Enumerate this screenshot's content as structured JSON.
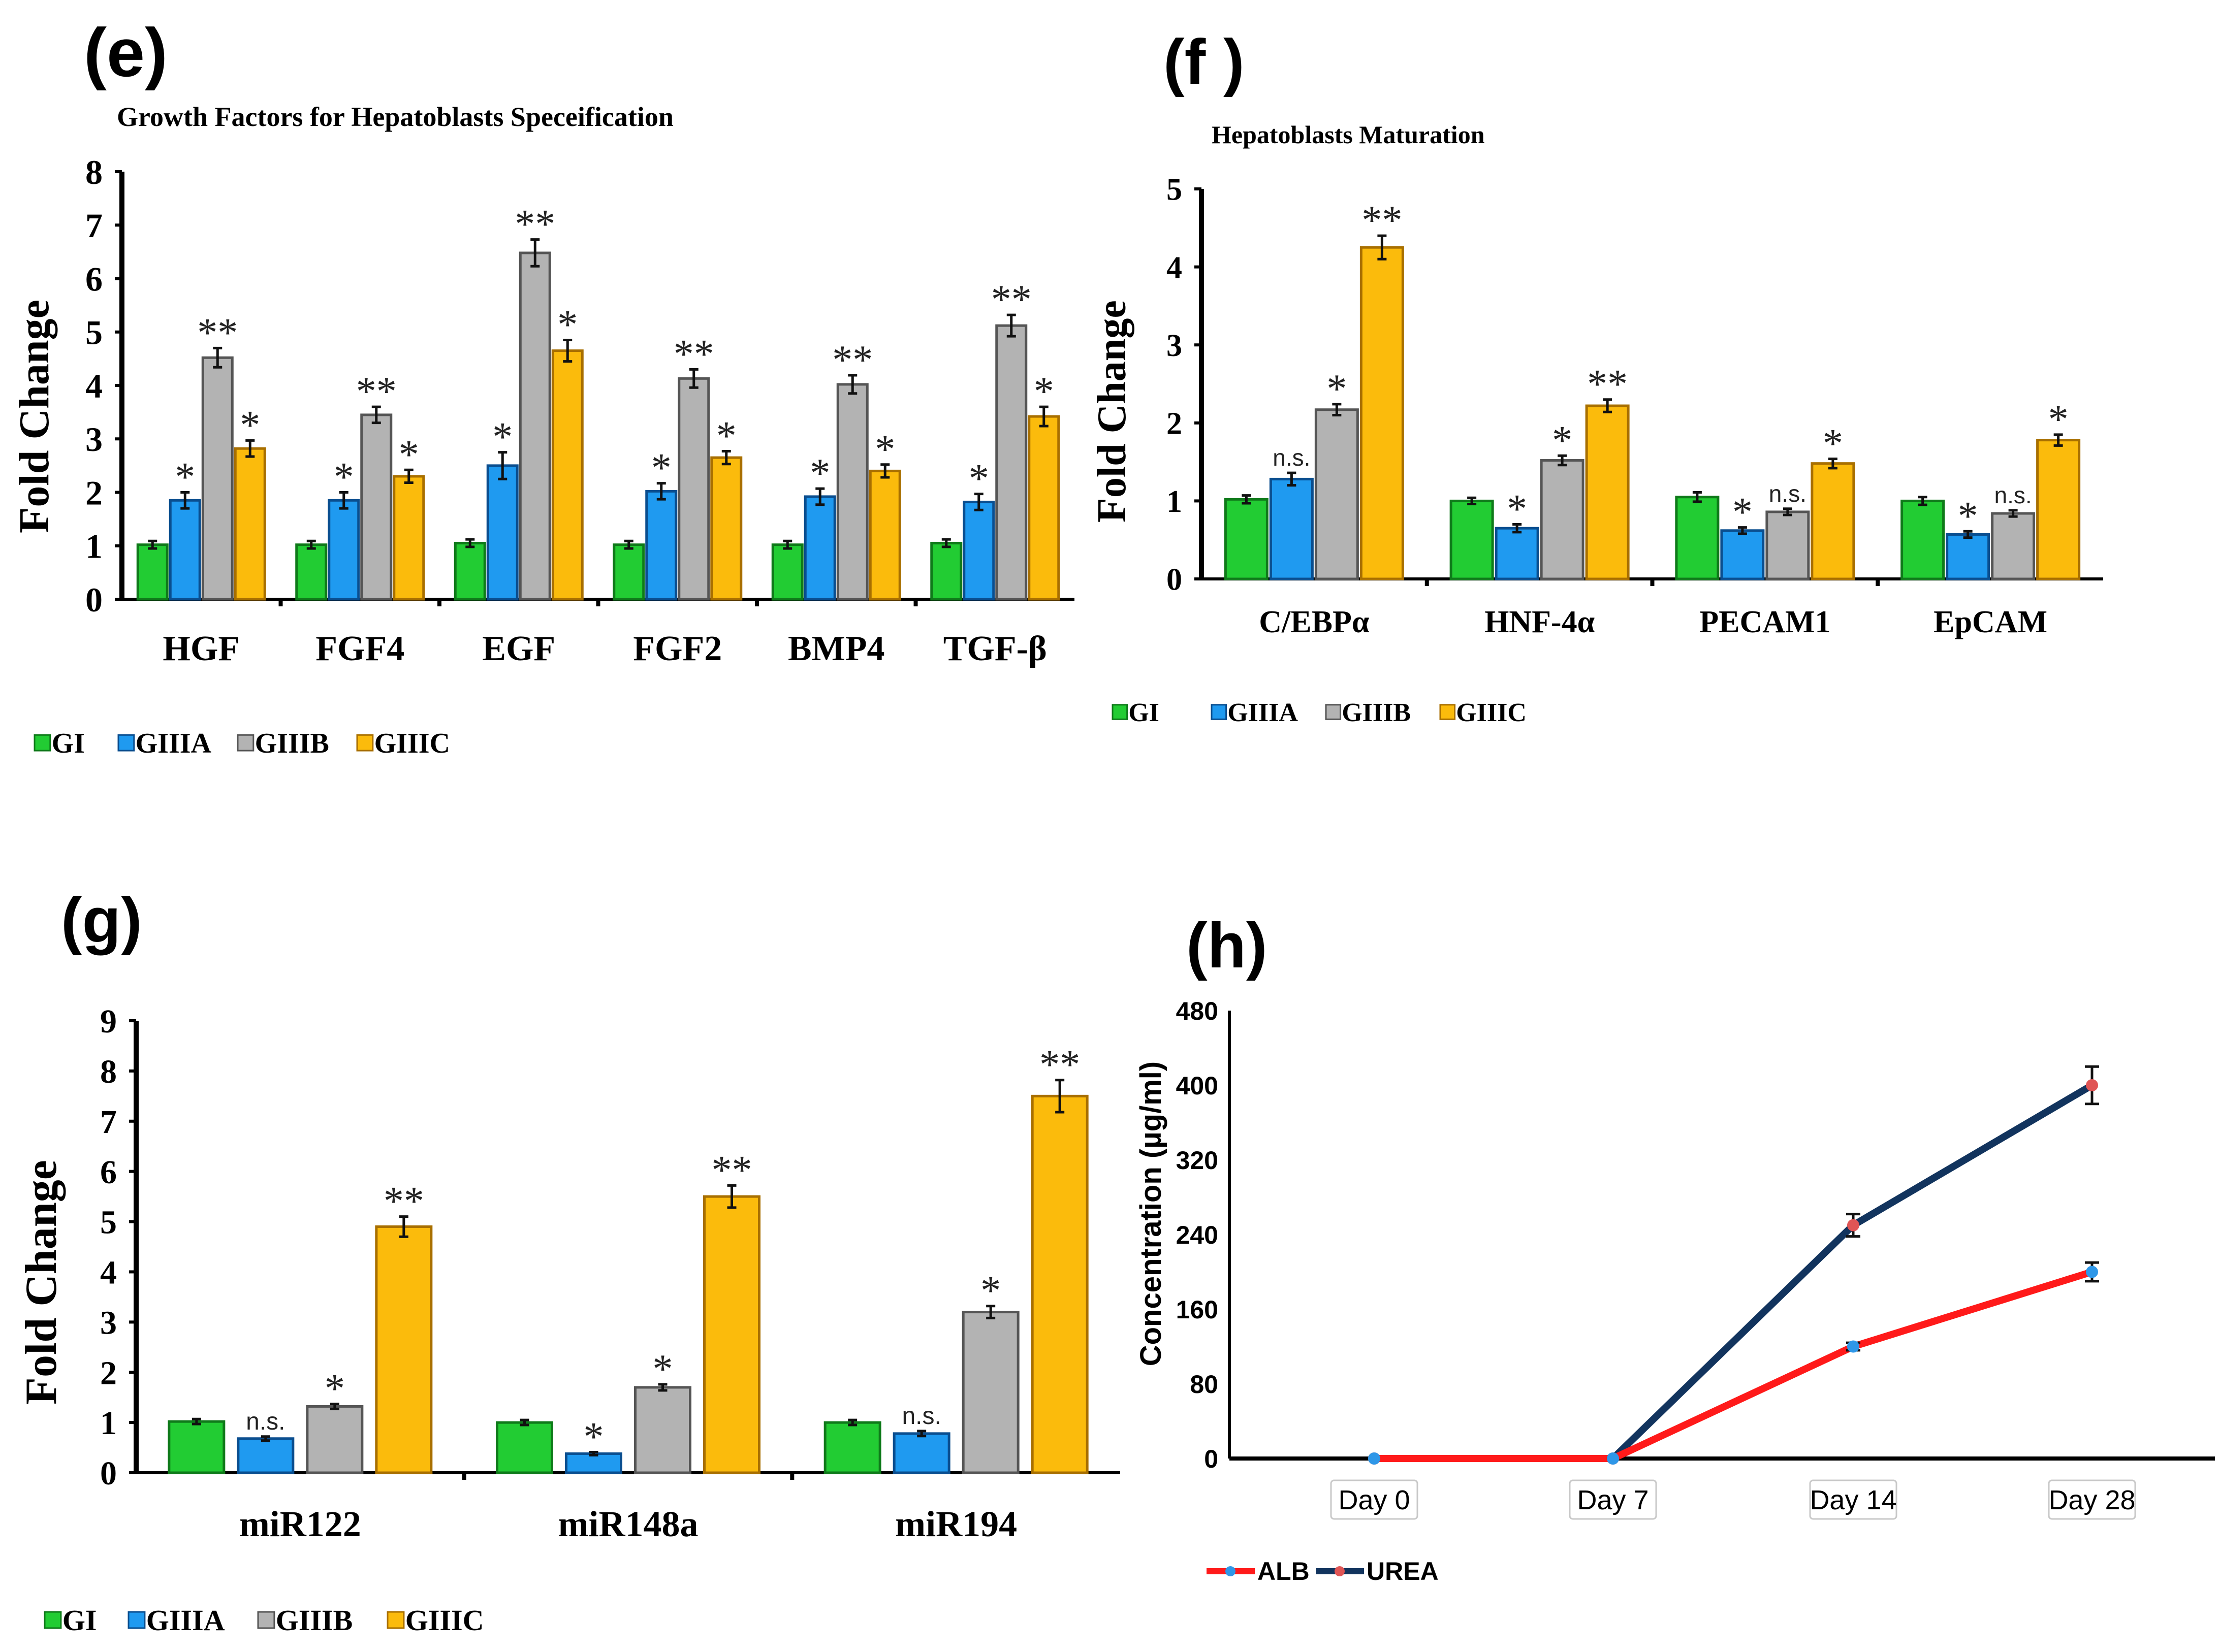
{
  "colors": {
    "GI": "#22cc33",
    "GI_edge": "#0f7a1a",
    "GIIIA": "#1f9af0",
    "GIIIA_edge": "#0a4e8f",
    "GIIIB": "#b3b3b3",
    "GIIIB_edge": "#555555",
    "GIIIC": "#fbbb0c",
    "GIIIC_edge": "#a86f00",
    "ALB": "#ff1a1a",
    "UREA": "#12345e",
    "ALB_marker": "#2e97e8",
    "UREA_marker": "#e05555"
  },
  "chart_data": [
    {
      "panel": "(e)",
      "type": "bar",
      "title": "Growth Factors for Hepatoblasts Speceification",
      "ylabel": "Fold Change",
      "xlabel": "",
      "ylim": [
        0,
        8
      ],
      "yticks": [
        "0",
        "1",
        "2",
        "3",
        "4",
        "5",
        "6",
        "7",
        "8"
      ],
      "categories": [
        "HGF",
        "FGF4",
        "EGF",
        "FGF2",
        "BMP4",
        "TGF-β"
      ],
      "series": [
        {
          "name": "GI",
          "values": [
            1.02,
            1.02,
            1.05,
            1.02,
            1.02,
            1.05
          ],
          "errors": [
            0.07,
            0.07,
            0.07,
            0.07,
            0.07,
            0.07
          ],
          "marks": [
            "",
            "",
            "",
            "",
            "",
            ""
          ]
        },
        {
          "name": "GIIIA",
          "values": [
            1.85,
            1.85,
            2.5,
            2.02,
            1.92,
            1.82
          ],
          "errors": [
            0.15,
            0.15,
            0.25,
            0.15,
            0.15,
            0.15
          ],
          "marks": [
            "*",
            "*",
            "*",
            "*",
            "*",
            "*"
          ]
        },
        {
          "name": "GIIIB",
          "values": [
            4.52,
            3.45,
            6.48,
            4.13,
            4.02,
            5.12
          ],
          "errors": [
            0.18,
            0.15,
            0.25,
            0.17,
            0.17,
            0.2
          ],
          "marks": [
            "**",
            "**",
            "**",
            "**",
            "**",
            "**"
          ]
        },
        {
          "name": "GIIIC",
          "values": [
            2.82,
            2.3,
            4.65,
            2.65,
            2.4,
            3.42
          ],
          "errors": [
            0.15,
            0.12,
            0.2,
            0.12,
            0.12,
            0.18
          ],
          "marks": [
            "*",
            "*",
            "*",
            "*",
            "*",
            "*"
          ]
        }
      ],
      "legend": [
        "GI",
        "GIIIA",
        "GIIIB",
        "GIIIC"
      ],
      "legend_position": "bottom-left"
    },
    {
      "panel": "(f )",
      "type": "bar",
      "title": "Hepatoblasts Maturation",
      "ylabel": "Fold Change",
      "xlabel": "",
      "ylim": [
        0,
        5
      ],
      "yticks": [
        "0",
        "1",
        "2",
        "3",
        "4",
        "5"
      ],
      "categories": [
        "C/EBPα",
        "HNF-4α",
        "PECAM1",
        "EpCAM"
      ],
      "series": [
        {
          "name": "GI",
          "values": [
            1.02,
            1.0,
            1.05,
            1.0
          ],
          "errors": [
            0.05,
            0.04,
            0.06,
            0.05
          ],
          "marks": [
            "",
            "",
            "",
            ""
          ]
        },
        {
          "name": "GIIIA",
          "values": [
            1.28,
            0.65,
            0.62,
            0.57
          ],
          "errors": [
            0.08,
            0.05,
            0.04,
            0.04
          ],
          "marks": [
            "n.s.",
            "*",
            "*",
            "*"
          ]
        },
        {
          "name": "GIIIB",
          "values": [
            2.17,
            1.52,
            0.86,
            0.84
          ],
          "errors": [
            0.07,
            0.06,
            0.04,
            0.04
          ],
          "marks": [
            "*",
            "*",
            "n.s.",
            "n.s."
          ]
        },
        {
          "name": "GIIIC",
          "values": [
            4.25,
            2.22,
            1.48,
            1.78
          ],
          "errors": [
            0.15,
            0.08,
            0.06,
            0.07
          ],
          "marks": [
            "**",
            "**",
            "*",
            "*"
          ]
        }
      ],
      "legend": [
        "GI",
        "GIIIA",
        "GIIIB",
        "GIIIC"
      ],
      "legend_position": "bottom-left"
    },
    {
      "panel": "(g)",
      "type": "bar",
      "title": "",
      "ylabel": "Fold Change",
      "xlabel": "",
      "ylim": [
        0,
        9
      ],
      "yticks": [
        "0",
        "1",
        "2",
        "3",
        "4",
        "5",
        "6",
        "7",
        "8",
        "9"
      ],
      "categories": [
        "miR122",
        "miR148a",
        "miR194"
      ],
      "series": [
        {
          "name": "GI",
          "values": [
            1.02,
            1.0,
            1.0
          ],
          "errors": [
            0.05,
            0.05,
            0.05
          ],
          "marks": [
            "",
            "",
            ""
          ]
        },
        {
          "name": "GIIIA",
          "values": [
            0.68,
            0.38,
            0.78
          ],
          "errors": [
            0.04,
            0.03,
            0.05
          ],
          "marks": [
            "n.s.",
            "*",
            "n.s."
          ]
        },
        {
          "name": "GIIIB",
          "values": [
            1.32,
            1.7,
            3.2
          ],
          "errors": [
            0.05,
            0.06,
            0.12
          ],
          "marks": [
            "*",
            "*",
            "*"
          ]
        },
        {
          "name": "GIIIC",
          "values": [
            4.9,
            5.5,
            7.5
          ],
          "errors": [
            0.2,
            0.22,
            0.32
          ],
          "marks": [
            "**",
            "**",
            "**"
          ]
        }
      ],
      "legend": [
        "GI",
        "GIIIA",
        "GIIIB",
        "GIIIC"
      ],
      "legend_position": "bottom-left"
    },
    {
      "panel": "(h)",
      "type": "line",
      "title": "",
      "ylabel": "Concentration (µg/ml)",
      "xlabel": "",
      "ylim": [
        0,
        480
      ],
      "yticks": [
        "0",
        "80",
        "160",
        "240",
        "320",
        "400",
        "480"
      ],
      "x": [
        "Day 0",
        "Day 7",
        "Day 14",
        "Day 28"
      ],
      "series": [
        {
          "name": "ALB",
          "values": [
            0,
            0,
            120,
            200
          ],
          "errors": [
            0,
            0,
            4,
            10
          ]
        },
        {
          "name": "UREA",
          "values": [
            0,
            0,
            250,
            400
          ],
          "errors": [
            0,
            0,
            12,
            20
          ]
        }
      ],
      "legend": [
        "ALB",
        "UREA"
      ],
      "legend_position": "bottom-left"
    }
  ]
}
